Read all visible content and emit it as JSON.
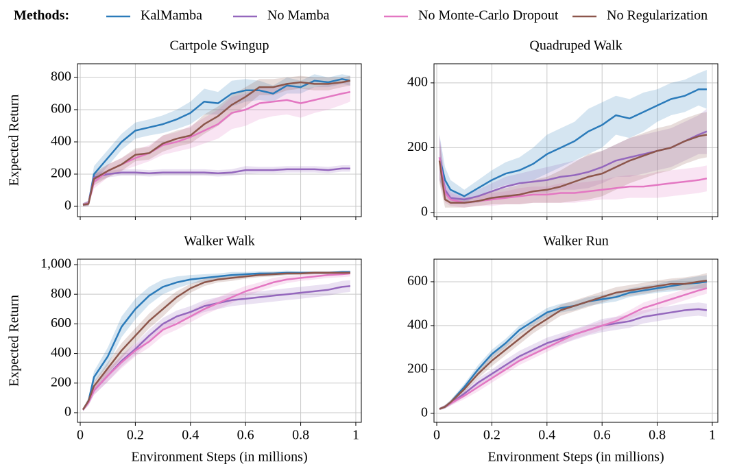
{
  "legend_title": "Methods:",
  "chart_data": [
    {
      "type": "line",
      "title": "Cartpole Swingup",
      "ylabel": "Expected Return",
      "x": [
        0.01,
        0.03,
        0.05,
        0.1,
        0.15,
        0.2,
        0.25,
        0.3,
        0.35,
        0.4,
        0.45,
        0.5,
        0.55,
        0.6,
        0.65,
        0.7,
        0.75,
        0.8,
        0.85,
        0.9,
        0.95,
        0.98
      ],
      "xlim": [
        -0.01,
        1.02
      ],
      "ylim": [
        -64,
        885
      ],
      "xticks": [
        0,
        0.2,
        0.4,
        0.6,
        0.8,
        1
      ],
      "yticks": [
        0,
        200,
        400,
        600,
        800
      ],
      "xtick_labels": false,
      "grid": true,
      "series": [
        {
          "name": "KalMamba",
          "color": "#2b7bba",
          "values": [
            10,
            20,
            200,
            300,
            400,
            470,
            490,
            510,
            540,
            580,
            650,
            640,
            700,
            720,
            720,
            700,
            750,
            740,
            780,
            770,
            790,
            780
          ],
          "spread": [
            10,
            15,
            50,
            50,
            50,
            50,
            50,
            55,
            60,
            70,
            80,
            70,
            80,
            70,
            60,
            50,
            50,
            40,
            40,
            30,
            30,
            30
          ]
        },
        {
          "name": "No Mamba",
          "color": "#9467bd",
          "values": [
            10,
            20,
            180,
            200,
            210,
            210,
            205,
            210,
            210,
            210,
            210,
            205,
            210,
            225,
            225,
            225,
            230,
            230,
            230,
            225,
            235,
            235
          ],
          "spread": [
            10,
            15,
            30,
            20,
            20,
            20,
            20,
            20,
            20,
            20,
            20,
            20,
            20,
            25,
            20,
            20,
            20,
            20,
            20,
            20,
            20,
            20
          ]
        },
        {
          "name": "No Monte-Carlo Dropout",
          "color": "#e377c2",
          "values": [
            10,
            20,
            150,
            220,
            260,
            300,
            330,
            380,
            400,
            430,
            470,
            510,
            580,
            600,
            640,
            650,
            660,
            640,
            660,
            680,
            700,
            710
          ],
          "spread": [
            10,
            15,
            40,
            40,
            40,
            50,
            50,
            60,
            60,
            70,
            80,
            90,
            100,
            100,
            100,
            90,
            90,
            90,
            80,
            80,
            70,
            60
          ]
        },
        {
          "name": "No Regularization",
          "color": "#8c564b",
          "values": [
            10,
            15,
            170,
            220,
            260,
            320,
            330,
            390,
            420,
            440,
            510,
            560,
            630,
            680,
            740,
            740,
            760,
            770,
            760,
            760,
            770,
            780
          ],
          "spread": [
            10,
            15,
            40,
            40,
            40,
            40,
            40,
            50,
            50,
            50,
            60,
            60,
            60,
            60,
            50,
            50,
            40,
            40,
            40,
            40,
            30,
            30
          ]
        }
      ]
    },
    {
      "type": "line",
      "title": "Quadruped Walk",
      "x": [
        0.01,
        0.03,
        0.05,
        0.1,
        0.15,
        0.2,
        0.25,
        0.3,
        0.35,
        0.4,
        0.45,
        0.5,
        0.55,
        0.6,
        0.65,
        0.7,
        0.75,
        0.8,
        0.85,
        0.9,
        0.95,
        0.98
      ],
      "xlim": [
        -0.01,
        1.02
      ],
      "ylim": [
        -13,
        459
      ],
      "xticks": [
        0,
        0.2,
        0.4,
        0.6,
        0.8,
        1
      ],
      "yticks": [
        0,
        200,
        400
      ],
      "xtick_labels": false,
      "grid": true,
      "series": [
        {
          "name": "KalMamba",
          "color": "#2b7bba",
          "values": [
            170,
            100,
            70,
            50,
            75,
            100,
            120,
            130,
            150,
            180,
            200,
            220,
            250,
            270,
            300,
            290,
            310,
            330,
            350,
            360,
            380,
            380
          ],
          "spread": [
            70,
            40,
            30,
            20,
            25,
            30,
            35,
            40,
            50,
            60,
            60,
            60,
            70,
            70,
            60,
            60,
            60,
            50,
            50,
            50,
            50,
            60
          ]
        },
        {
          "name": "No Mamba",
          "color": "#9467bd",
          "values": [
            170,
            70,
            45,
            40,
            50,
            65,
            80,
            90,
            95,
            100,
            110,
            115,
            125,
            140,
            160,
            170,
            180,
            190,
            200,
            220,
            240,
            250
          ],
          "spread": [
            70,
            30,
            20,
            15,
            20,
            25,
            30,
            30,
            35,
            40,
            40,
            45,
            50,
            50,
            50,
            60,
            60,
            60,
            60,
            60,
            60,
            70
          ]
        },
        {
          "name": "No Monte-Carlo Dropout",
          "color": "#e377c2",
          "values": [
            170,
            60,
            40,
            30,
            35,
            40,
            45,
            50,
            55,
            55,
            60,
            60,
            65,
            70,
            75,
            80,
            80,
            85,
            90,
            95,
            100,
            105
          ],
          "spread": [
            70,
            30,
            20,
            15,
            15,
            20,
            20,
            25,
            25,
            25,
            30,
            30,
            30,
            30,
            35,
            35,
            35,
            40,
            40,
            40,
            40,
            40
          ]
        },
        {
          "name": "No Regularization",
          "color": "#8c564b",
          "values": [
            160,
            40,
            30,
            30,
            35,
            45,
            50,
            55,
            65,
            70,
            80,
            95,
            110,
            120,
            140,
            160,
            175,
            190,
            200,
            220,
            235,
            240
          ],
          "spread": [
            70,
            25,
            15,
            15,
            15,
            20,
            25,
            30,
            35,
            40,
            50,
            60,
            70,
            70,
            70,
            70,
            70,
            70,
            70,
            70,
            70,
            70
          ]
        }
      ]
    },
    {
      "type": "line",
      "title": "Walker Walk",
      "ylabel": "Expected Return",
      "xlabel": "Environment Steps (in millions)",
      "x": [
        0.01,
        0.03,
        0.05,
        0.1,
        0.15,
        0.2,
        0.25,
        0.3,
        0.35,
        0.4,
        0.45,
        0.5,
        0.55,
        0.6,
        0.65,
        0.7,
        0.75,
        0.8,
        0.85,
        0.9,
        0.95,
        0.98
      ],
      "xlim": [
        -0.01,
        1.02
      ],
      "ylim": [
        -65,
        1037
      ],
      "xticks": [
        0,
        0.2,
        0.4,
        0.6,
        0.8,
        1
      ],
      "yticks": [
        0,
        200,
        400,
        600,
        800,
        {
          "value": 1000,
          "label": "1,000"
        }
      ],
      "xtick_labels": true,
      "grid": true,
      "series": [
        {
          "name": "KalMamba",
          "color": "#2b7bba",
          "values": [
            20,
            80,
            240,
            380,
            580,
            700,
            790,
            850,
            880,
            900,
            910,
            920,
            930,
            935,
            940,
            940,
            945,
            945,
            945,
            945,
            950,
            950
          ],
          "spread": [
            10,
            20,
            40,
            60,
            70,
            70,
            60,
            50,
            40,
            30,
            25,
            20,
            20,
            15,
            15,
            15,
            15,
            10,
            10,
            10,
            10,
            10
          ]
        },
        {
          "name": "No Mamba",
          "color": "#9467bd",
          "values": [
            20,
            70,
            150,
            250,
            350,
            430,
            520,
            600,
            650,
            680,
            720,
            740,
            760,
            770,
            780,
            790,
            800,
            810,
            820,
            830,
            850,
            855
          ],
          "spread": [
            10,
            20,
            30,
            40,
            40,
            40,
            40,
            40,
            40,
            40,
            40,
            40,
            40,
            40,
            40,
            40,
            40,
            40,
            40,
            40,
            40,
            40
          ]
        },
        {
          "name": "No Monte-Carlo Dropout",
          "color": "#e377c2",
          "values": [
            20,
            70,
            150,
            250,
            340,
            420,
            480,
            560,
            600,
            650,
            700,
            740,
            780,
            820,
            850,
            880,
            900,
            910,
            920,
            930,
            935,
            940
          ],
          "spread": [
            10,
            20,
            30,
            40,
            40,
            40,
            40,
            40,
            40,
            40,
            40,
            40,
            40,
            35,
            30,
            30,
            25,
            20,
            20,
            20,
            20,
            20
          ]
        },
        {
          "name": "No Regularization",
          "color": "#8c564b",
          "values": [
            20,
            80,
            180,
            300,
            420,
            520,
            620,
            700,
            780,
            840,
            880,
            900,
            910,
            920,
            930,
            935,
            940,
            940,
            945,
            945,
            945,
            945
          ],
          "spread": [
            10,
            20,
            30,
            40,
            50,
            50,
            50,
            50,
            40,
            30,
            25,
            20,
            20,
            15,
            15,
            15,
            10,
            10,
            10,
            10,
            10,
            10
          ]
        }
      ]
    },
    {
      "type": "line",
      "title": "Walker Run",
      "xlabel": "Environment Steps (in millions)",
      "x": [
        0.01,
        0.03,
        0.05,
        0.1,
        0.15,
        0.2,
        0.25,
        0.3,
        0.35,
        0.4,
        0.45,
        0.5,
        0.55,
        0.6,
        0.65,
        0.7,
        0.75,
        0.8,
        0.85,
        0.9,
        0.95,
        0.98
      ],
      "xlim": [
        -0.01,
        1.02
      ],
      "ylim": [
        -41,
        703
      ],
      "xticks": [
        0,
        0.2,
        0.4,
        0.6,
        0.8,
        1
      ],
      "yticks": [
        0,
        200,
        400,
        600
      ],
      "xtick_labels": true,
      "grid": true,
      "series": [
        {
          "name": "KalMamba",
          "color": "#2b7bba",
          "values": [
            20,
            30,
            50,
            120,
            200,
            270,
            320,
            380,
            420,
            460,
            480,
            490,
            510,
            520,
            530,
            550,
            560,
            570,
            580,
            590,
            595,
            600
          ],
          "spread": [
            5,
            8,
            10,
            15,
            20,
            20,
            20,
            20,
            20,
            20,
            20,
            20,
            20,
            20,
            20,
            20,
            20,
            20,
            25,
            25,
            30,
            30
          ]
        },
        {
          "name": "No Mamba",
          "color": "#9467bd",
          "values": [
            20,
            30,
            45,
            90,
            140,
            180,
            220,
            260,
            290,
            320,
            340,
            360,
            380,
            400,
            410,
            420,
            440,
            450,
            460,
            470,
            475,
            470
          ],
          "spread": [
            5,
            8,
            10,
            15,
            20,
            20,
            25,
            25,
            25,
            25,
            25,
            25,
            25,
            30,
            30,
            30,
            30,
            30,
            30,
            30,
            30,
            30
          ]
        },
        {
          "name": "No Monte-Carlo Dropout",
          "color": "#e377c2",
          "values": [
            20,
            30,
            45,
            80,
            120,
            160,
            200,
            240,
            270,
            300,
            330,
            360,
            380,
            400,
            420,
            450,
            480,
            500,
            520,
            540,
            560,
            570
          ],
          "spread": [
            5,
            8,
            10,
            15,
            20,
            20,
            20,
            20,
            20,
            20,
            20,
            20,
            20,
            20,
            20,
            20,
            25,
            25,
            25,
            25,
            25,
            25
          ]
        },
        {
          "name": "No Regularization",
          "color": "#8c564b",
          "values": [
            20,
            30,
            50,
            110,
            180,
            240,
            290,
            340,
            390,
            430,
            470,
            490,
            510,
            530,
            550,
            560,
            570,
            580,
            590,
            590,
            600,
            605
          ],
          "spread": [
            5,
            8,
            10,
            15,
            20,
            25,
            25,
            25,
            25,
            25,
            25,
            25,
            25,
            25,
            25,
            25,
            25,
            25,
            25,
            30,
            30,
            35
          ]
        }
      ]
    }
  ]
}
